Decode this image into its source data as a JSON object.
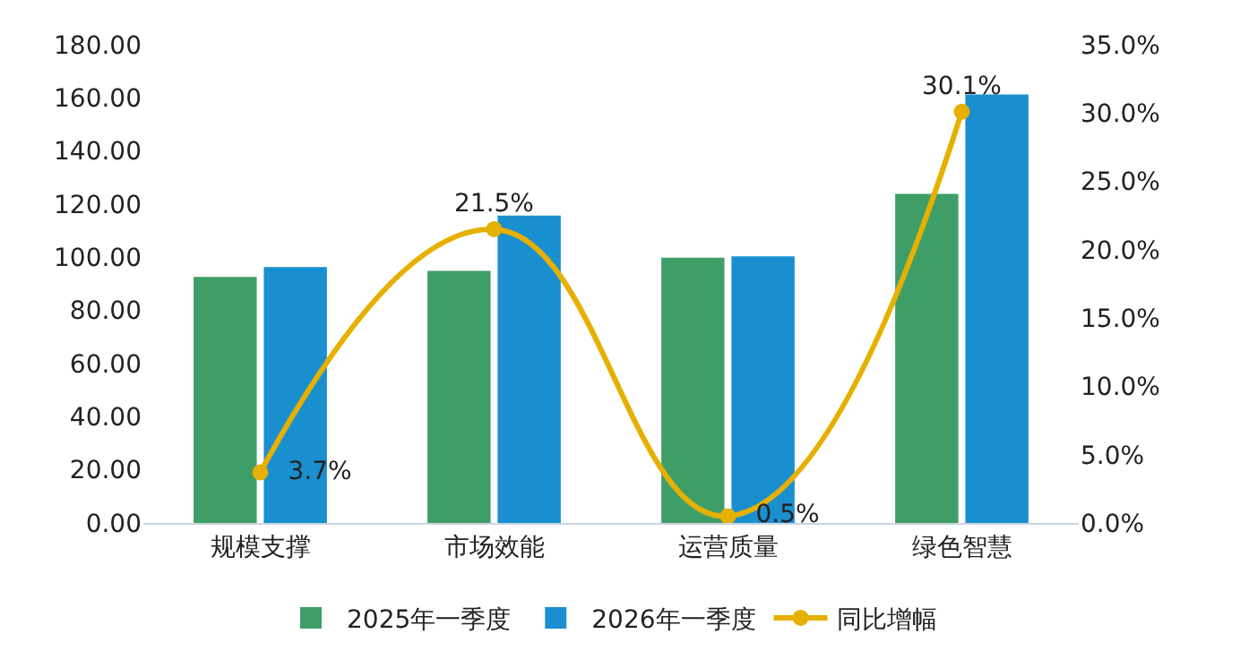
{
  "chart_data": {
    "type": "bar",
    "categories": [
      "规模支撑",
      "市场效能",
      "运营质量",
      "绿色智慧"
    ],
    "series": [
      {
        "name": "2025年一季度",
        "color": "#3f9e68",
        "values": [
          92.6,
          94.9,
          99.9,
          123.9
        ]
      },
      {
        "name": "2026年一季度",
        "color": "#1a8fd0",
        "values": [
          96.3,
          115.7,
          100.4,
          161.3
        ]
      },
      {
        "name": "同比增幅",
        "type": "line",
        "axis": "y2",
        "color": "#e6b000",
        "marker": "circle",
        "values": [
          3.7,
          21.5,
          0.5,
          30.1
        ],
        "value_labels": [
          "3.7%",
          "21.5%",
          "0.5%",
          "30.1%"
        ]
      }
    ],
    "ylim": [
      0,
      180
    ],
    "yticks": [
      {
        "value": 0,
        "label": "0.00"
      },
      {
        "value": 20,
        "label": "20.00"
      },
      {
        "value": 40,
        "label": "40.00"
      },
      {
        "value": 60,
        "label": "60.00"
      },
      {
        "value": 80,
        "label": "80.00"
      },
      {
        "value": 100,
        "label": "100.00"
      },
      {
        "value": 120,
        "label": "120.00"
      },
      {
        "value": 140,
        "label": "140.00"
      },
      {
        "value": 160,
        "label": "160.00"
      },
      {
        "value": 180,
        "label": "180.00"
      }
    ],
    "y2lim": [
      0,
      35
    ],
    "y2ticks": [
      {
        "value": 0,
        "label": "0.0%"
      },
      {
        "value": 5,
        "label": "5.0%"
      },
      {
        "value": 10,
        "label": "10.0%"
      },
      {
        "value": 15,
        "label": "15.0%"
      },
      {
        "value": 20,
        "label": "20.0%"
      },
      {
        "value": 25,
        "label": "25.0%"
      },
      {
        "value": 30,
        "label": "30.0%"
      },
      {
        "value": 35,
        "label": "35.0%"
      }
    ],
    "grid": false,
    "legend": "bottom"
  }
}
